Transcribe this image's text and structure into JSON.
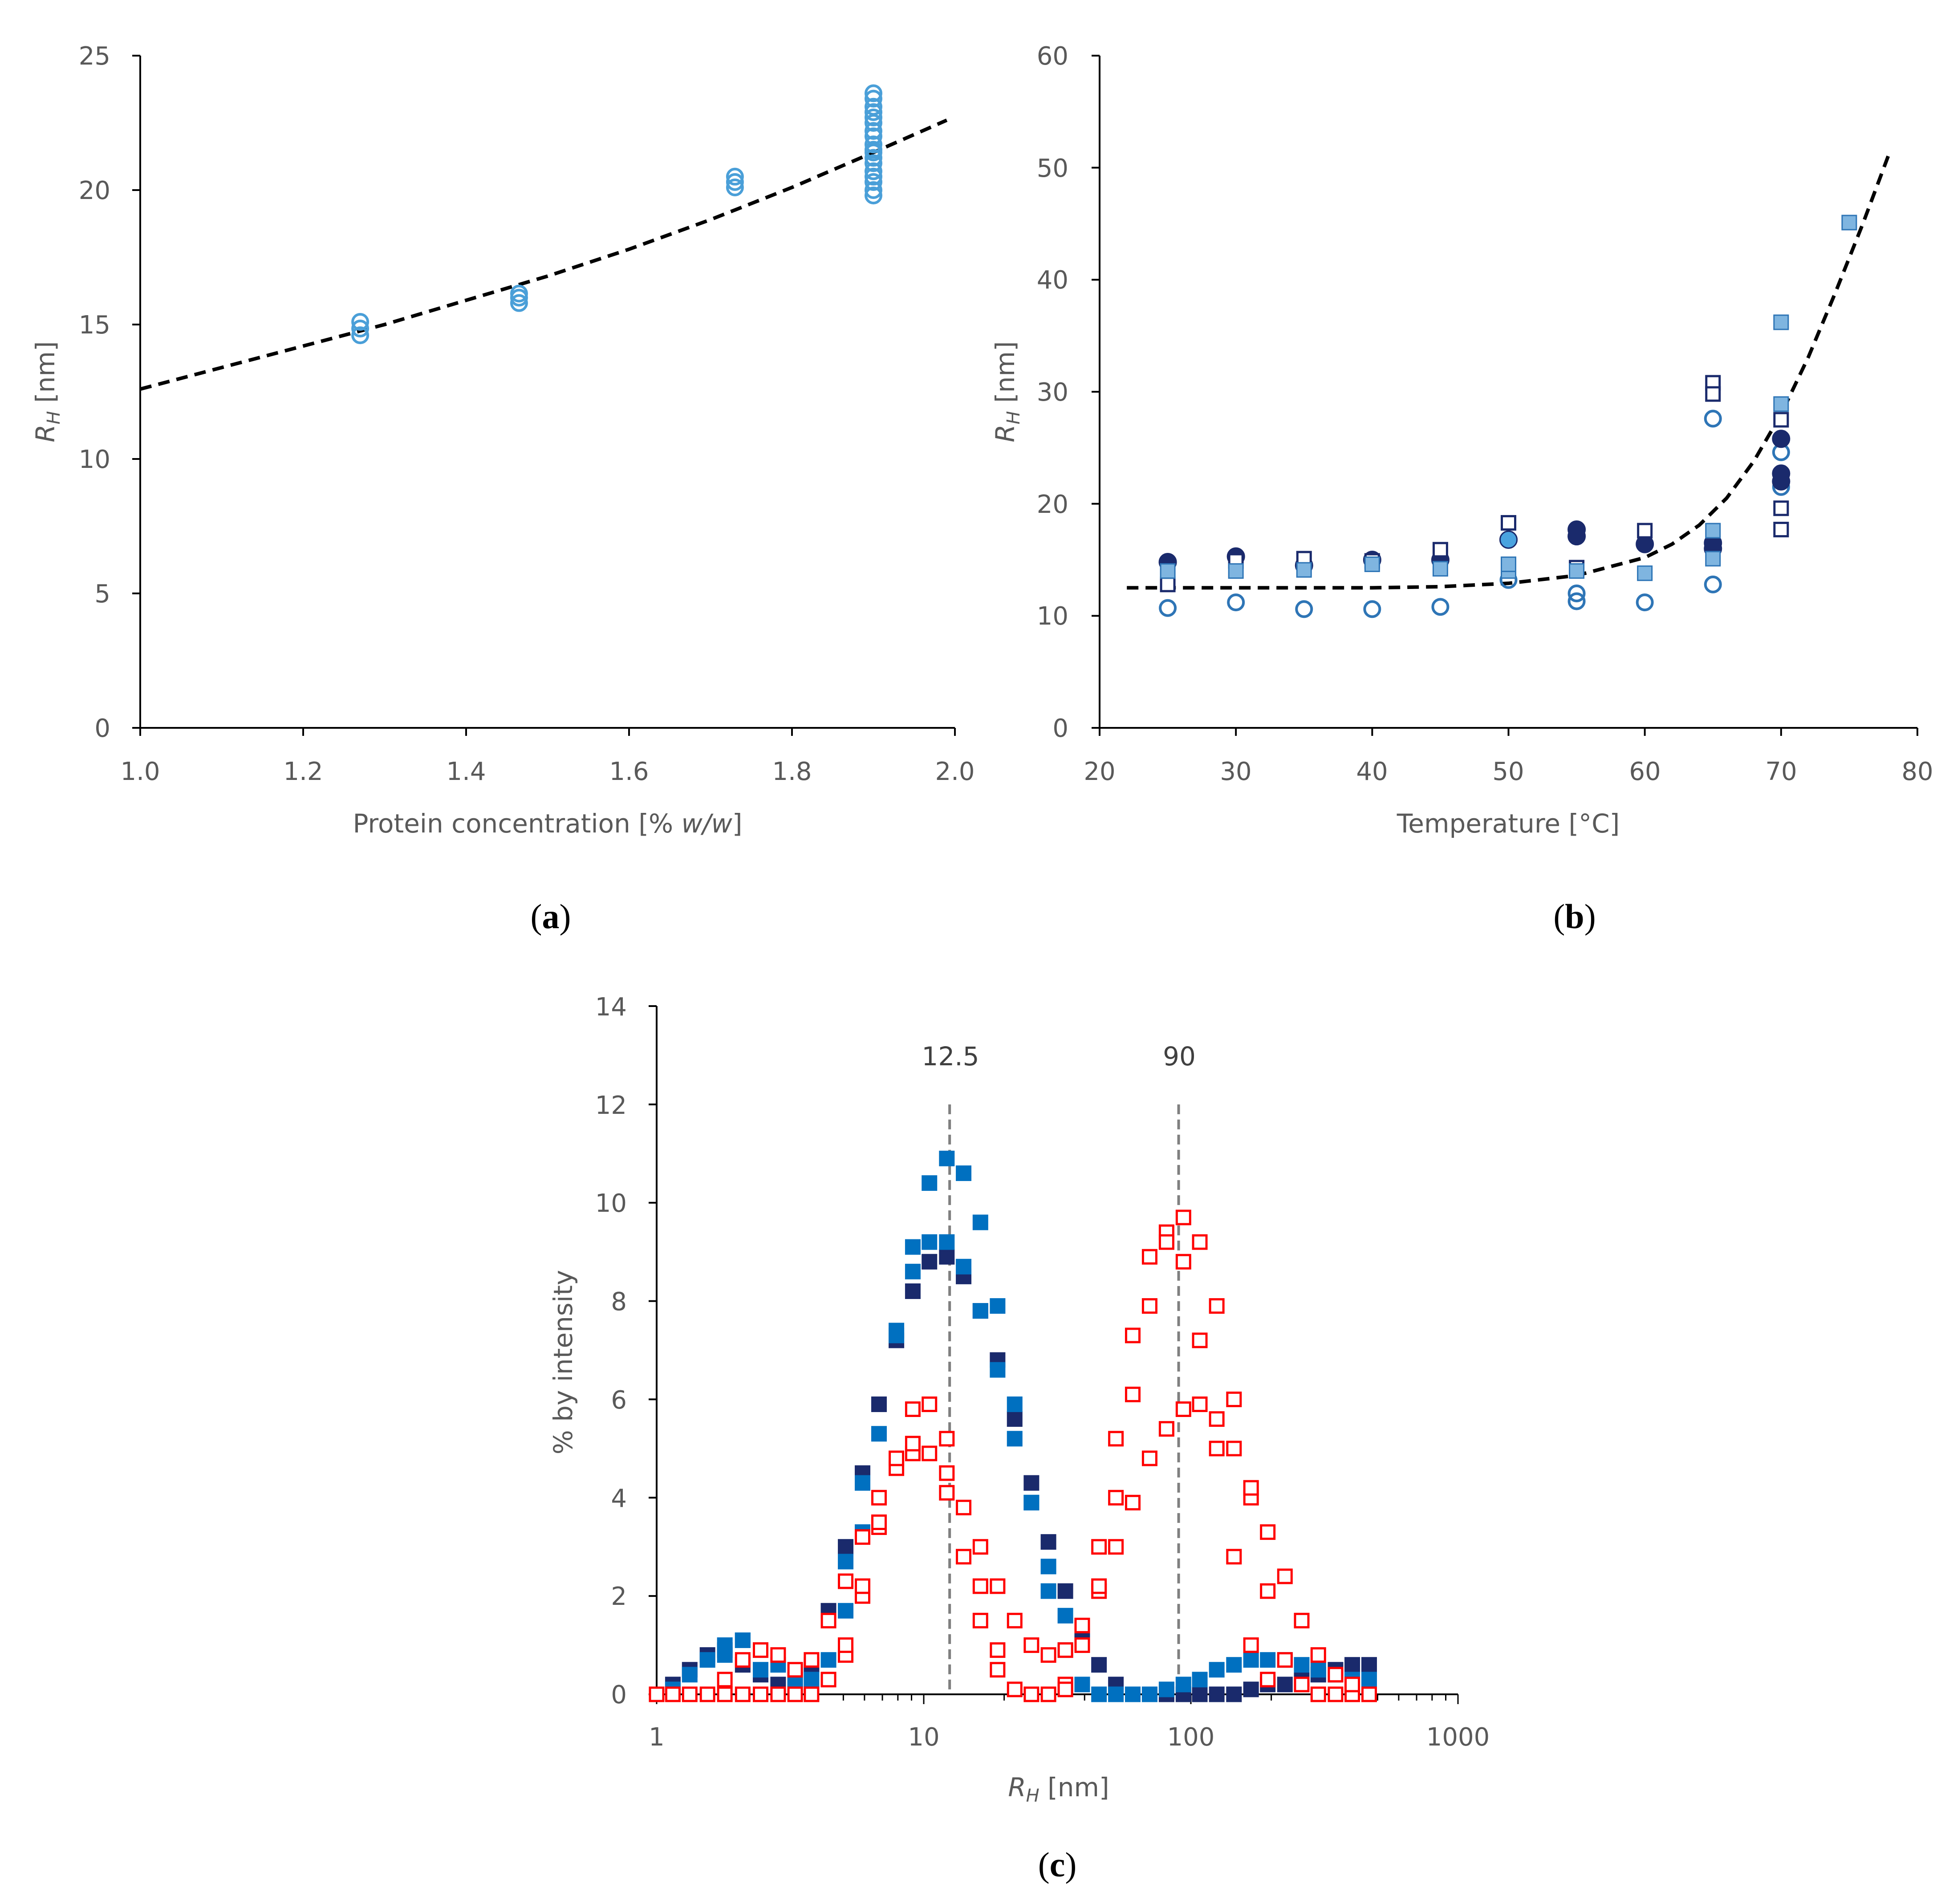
{
  "chart_data": [
    {
      "panel": "a",
      "panel_label_open": "(",
      "panel_label_letter": "a",
      "panel_label_close": ")",
      "type": "scatter",
      "xlabel_prefix": "Protein concentration [% ",
      "xlabel_italic": "w/w",
      "xlabel_suffix": "]",
      "ylabel_main": "R",
      "ylabel_sub": "H",
      "ylabel_unit": " [nm]",
      "xlim": [
        1.0,
        2.0
      ],
      "ylim": [
        0,
        25
      ],
      "xticks": [
        "1.0",
        "1.2",
        "1.4",
        "1.6",
        "1.8",
        "2.0"
      ],
      "yticks": [
        "0",
        "5",
        "10",
        "15",
        "20",
        "25"
      ],
      "colors": {
        "marker": "#4a9fd8",
        "fit": "#000000"
      },
      "series": [
        {
          "name": "measurements",
          "marker": "open-circle",
          "x": [
            1.27,
            1.27,
            1.27,
            1.465,
            1.465,
            1.465,
            1.73,
            1.73,
            1.73,
            1.9,
            1.9,
            1.9,
            1.9,
            1.9,
            1.9,
            1.9,
            1.9,
            1.9,
            1.9,
            1.9,
            1.9,
            1.9,
            1.9,
            1.9,
            1.9,
            1.9,
            1.9
          ],
          "y": [
            14.6,
            14.85,
            15.1,
            15.8,
            16.0,
            16.15,
            20.1,
            20.3,
            20.5,
            19.8,
            20.0,
            20.3,
            20.5,
            20.7,
            21.0,
            21.2,
            21.4,
            21.5,
            21.7,
            22.0,
            22.2,
            22.5,
            22.7,
            22.9,
            23.1,
            23.4,
            23.6
          ]
        },
        {
          "name": "fit",
          "style": "dashed",
          "x": [
            1.0,
            1.1,
            1.2,
            1.3,
            1.4,
            1.5,
            1.6,
            1.7,
            1.8,
            1.9,
            1.99
          ],
          "y": [
            12.6,
            13.4,
            14.2,
            15.0,
            15.9,
            16.8,
            17.8,
            18.9,
            20.1,
            21.4,
            22.6
          ]
        }
      ]
    },
    {
      "panel": "b",
      "panel_label_open": "(",
      "panel_label_letter": "b",
      "panel_label_close": ")",
      "type": "scatter",
      "xlabel": "Temperature [°C]",
      "ylabel_main": "R",
      "ylabel_sub": "H",
      "ylabel_unit": " [nm]",
      "xlim": [
        20,
        80
      ],
      "ylim": [
        0,
        60
      ],
      "xticks": [
        "20",
        "30",
        "40",
        "50",
        "60",
        "70",
        "80"
      ],
      "yticks": [
        "0",
        "10",
        "20",
        "30",
        "40",
        "50",
        "60"
      ],
      "colors": {
        "navy": "#1a2a6c",
        "mid": "#2e75b6",
        "light": "#7fb5e0",
        "fit": "#000000"
      },
      "series": [
        {
          "name": "open circles",
          "marker": "open-circle",
          "color": "#2e75b6",
          "x": [
            25,
            30,
            35,
            40,
            45,
            50,
            55,
            55,
            60,
            65,
            65,
            70,
            70
          ],
          "y": [
            10.7,
            11.2,
            10.6,
            10.6,
            10.8,
            13.2,
            11.3,
            12.0,
            11.2,
            12.8,
            27.6,
            21.5,
            24.6
          ]
        },
        {
          "name": "filled circles",
          "marker": "filled-circle",
          "color": "#1a2a6c",
          "x": [
            25,
            30,
            35,
            40,
            45,
            50,
            55,
            55,
            60,
            65,
            65,
            70,
            70,
            70
          ],
          "y": [
            14.8,
            15.3,
            14.5,
            15.0,
            15.0,
            16.8,
            17.1,
            17.7,
            16.4,
            16.0,
            16.5,
            22.0,
            22.7,
            25.8
          ]
        },
        {
          "name": "light filled circles",
          "marker": "filled-circle",
          "color": "#4aa3df",
          "x": [
            50
          ],
          "y": [
            16.8
          ]
        },
        {
          "name": "dark open squares",
          "marker": "open-square",
          "color": "#1a2a6c",
          "x": [
            25,
            30,
            35,
            40,
            45,
            50,
            55,
            60,
            65,
            65,
            70,
            70,
            70
          ],
          "y": [
            12.8,
            14.9,
            15.1,
            14.9,
            15.9,
            18.3,
            14.3,
            17.6,
            30.8,
            29.8,
            19.6,
            17.7,
            27.5
          ]
        },
        {
          "name": "light squares",
          "marker": "filled-square",
          "color": "#7fb5e0",
          "x": [
            25,
            30,
            35,
            40,
            45,
            50,
            50,
            55,
            60,
            65,
            65,
            70,
            70,
            75
          ],
          "y": [
            14.0,
            14.0,
            14.1,
            14.6,
            14.2,
            14.0,
            14.6,
            14.0,
            13.8,
            15.1,
            17.6,
            36.2,
            28.9,
            45.1
          ]
        },
        {
          "name": "fit",
          "style": "dashed",
          "x": [
            22,
            30,
            40,
            45,
            50,
            55,
            60,
            62,
            64,
            66,
            68,
            70,
            72,
            74,
            76,
            78
          ],
          "y": [
            12.5,
            12.5,
            12.5,
            12.6,
            12.9,
            13.6,
            15.2,
            16.4,
            18.1,
            20.5,
            23.8,
            28.0,
            33.1,
            38.9,
            45.0,
            51.5
          ]
        }
      ]
    },
    {
      "panel": "c",
      "panel_label_open": "(",
      "panel_label_letter": "c",
      "panel_label_close": ")",
      "type": "scatter",
      "xscale": "log",
      "xlabel_main": "R",
      "xlabel_sub": "H",
      "xlabel_unit": " [nm]",
      "ylabel": "% by intensity",
      "xlim": [
        1,
        1000
      ],
      "ylim": [
        0,
        14
      ],
      "xticks": [
        "1",
        "10",
        "100",
        "1000"
      ],
      "yticks": [
        "0",
        "2",
        "4",
        "6",
        "8",
        "10",
        "12",
        "14"
      ],
      "colors": {
        "navy": "#1a2a6c",
        "blue": "#0070c0",
        "red": "#ff0000",
        "ref": "#7f7f7f"
      },
      "reference_lines": [
        {
          "x": 12.5,
          "label": "12.5"
        },
        {
          "x": 90,
          "label": "90"
        }
      ],
      "series": [
        {
          "name": "navy filled squares",
          "marker": "filled-square",
          "color": "#1a2a6c",
          "x": [
            1.0,
            1.15,
            1.33,
            1.55,
            1.8,
            2.1,
            2.45,
            2.85,
            3.3,
            3.8,
            4.4,
            5.1,
            5.9,
            6.8,
            7.9,
            9.1,
            10.5,
            12.2,
            14.1,
            16.3,
            18.9,
            21.9,
            25.3,
            29.3,
            33.9,
            39.2,
            45.3,
            52.4,
            60.6,
            70.1,
            81.1,
            93.8,
            108,
            125,
            145,
            168,
            194,
            225,
            260,
            300,
            348,
            402,
            465
          ],
          "y": [
            0.0,
            0.2,
            0.5,
            0.8,
            0.9,
            0.6,
            0.4,
            0.2,
            0.3,
            0.6,
            1.7,
            3.0,
            4.5,
            5.9,
            7.2,
            8.2,
            8.8,
            8.9,
            8.5,
            7.8,
            6.8,
            5.6,
            4.3,
            3.1,
            2.1,
            1.2,
            0.6,
            0.2,
            0.0,
            0.0,
            0.0,
            0.0,
            0.0,
            0.0,
            0.0,
            0.1,
            0.2,
            0.2,
            0.3,
            0.4,
            0.5,
            0.6,
            0.6
          ]
        },
        {
          "name": "blue filled squares",
          "marker": "filled-square",
          "color": "#0070c0",
          "x": [
            1.0,
            1.15,
            1.33,
            1.55,
            1.8,
            2.1,
            2.45,
            2.85,
            3.3,
            3.8,
            4.4,
            5.1,
            5.9,
            6.8,
            7.9,
            9.1,
            10.5,
            12.2,
            14.1,
            16.3,
            18.9,
            21.9,
            25.3,
            29.3,
            33.9,
            39.2,
            45.3,
            52.4,
            60.6,
            70.1,
            81.1,
            93.8,
            108,
            125,
            145,
            168,
            194,
            225,
            260,
            300,
            348,
            402,
            465
          ],
          "y": [
            0.0,
            0.1,
            0.4,
            0.7,
            1.0,
            1.1,
            0.9,
            0.6,
            0.3,
            0.3,
            0.7,
            1.7,
            3.3,
            5.3,
            7.4,
            9.1,
            10.4,
            10.9,
            10.6,
            9.6,
            7.9,
            5.9,
            3.9,
            2.1,
            0.9,
            0.2,
            0.0,
            0.0,
            0.0,
            0.0,
            0.1,
            0.2,
            0.3,
            0.5,
            0.6,
            0.7,
            0.7,
            0.7,
            0.6,
            0.5,
            0.4,
            0.3,
            0.3
          ]
        },
        {
          "name": "blue filled squares (replicate)",
          "marker": "filled-square",
          "color": "#0070c0",
          "x": [
            1.8,
            2.1,
            2.45,
            5.1,
            5.9,
            7.9,
            9.1,
            10.5,
            12.2,
            14.1,
            16.3,
            18.9,
            21.9,
            25.3,
            29.3,
            33.9
          ],
          "y": [
            0.8,
            1.1,
            0.5,
            2.7,
            4.3,
            7.3,
            8.6,
            9.2,
            9.2,
            8.7,
            7.8,
            6.6,
            5.2,
            3.9,
            2.6,
            1.6
          ]
        },
        {
          "name": "red open squares",
          "marker": "open-square",
          "color": "#ff0000",
          "x": [
            1.0,
            1.15,
            1.33,
            1.55,
            1.8,
            2.1,
            2.45,
            2.85,
            3.3,
            3.8,
            4.4,
            5.1,
            5.9,
            6.8,
            7.9,
            9.1,
            10.5,
            12.2,
            14.1,
            16.3,
            18.9,
            21.9,
            25.3,
            29.3,
            33.9,
            39.2,
            45.3,
            52.4,
            60.6,
            70.1,
            81.1,
            93.8,
            108,
            125,
            145,
            168,
            194,
            225,
            260,
            300,
            348,
            402,
            465
          ],
          "y": [
            0.0,
            0.0,
            0.0,
            0.0,
            0.0,
            0.0,
            0.0,
            0.0,
            0.0,
            0.0,
            0.3,
            0.8,
            2.0,
            3.4,
            4.6,
            4.9,
            4.9,
            4.5,
            3.8,
            3.0,
            2.2,
            1.5,
            1.0,
            0.8,
            0.9,
            1.4,
            2.1,
            3.0,
            3.9,
            4.8,
            5.4,
            5.8,
            5.9,
            5.6,
            5.0,
            4.0,
            2.1,
            0.7,
            0.2,
            0.0,
            0.0,
            0.0,
            0.0
          ]
        },
        {
          "name": "red open squares (replicate)",
          "marker": "open-square",
          "color": "#ff0000",
          "x": [
            1.8,
            2.1,
            2.45,
            2.85,
            3.3,
            3.8,
            4.4,
            5.1,
            5.9,
            6.8,
            7.9,
            9.1,
            10.5,
            12.2,
            14.1,
            16.3,
            18.9,
            21.9,
            25.3,
            29.3,
            33.9,
            39.2,
            45.3,
            52.4,
            60.6,
            70.1,
            81.1,
            93.8,
            108,
            125,
            145,
            168,
            194,
            225,
            260,
            300,
            348,
            402
          ],
          "y": [
            0.3,
            0.7,
            0.9,
            0.8,
            0.5,
            0.7,
            1.5,
            2.3,
            3.2,
            4.0,
            4.8,
            5.8,
            5.9,
            5.2,
            2.8,
            2.2,
            0.9,
            0.1,
            0.0,
            0.0,
            0.2,
            1.0,
            3.0,
            5.2,
            7.3,
            8.9,
            9.4,
            9.7,
            9.2,
            7.9,
            6.0,
            4.2,
            3.3,
            2.4,
            1.5,
            0.8,
            0.4,
            0.2
          ]
        },
        {
          "name": "red open squares (replicate 2)",
          "marker": "open-square",
          "color": "#ff0000",
          "x": [
            5.1,
            5.9,
            6.8,
            9.1,
            12.2,
            16.3,
            18.9,
            33.9,
            45.3,
            52.4,
            60.6,
            70.1,
            81.1,
            93.8,
            108,
            125,
            145,
            168,
            194
          ],
          "y": [
            1.0,
            2.2,
            3.5,
            5.1,
            4.1,
            1.5,
            0.5,
            0.1,
            2.2,
            4.0,
            6.1,
            7.9,
            9.2,
            8.8,
            7.2,
            5.0,
            2.8,
            1.0,
            0.3
          ]
        }
      ]
    }
  ]
}
